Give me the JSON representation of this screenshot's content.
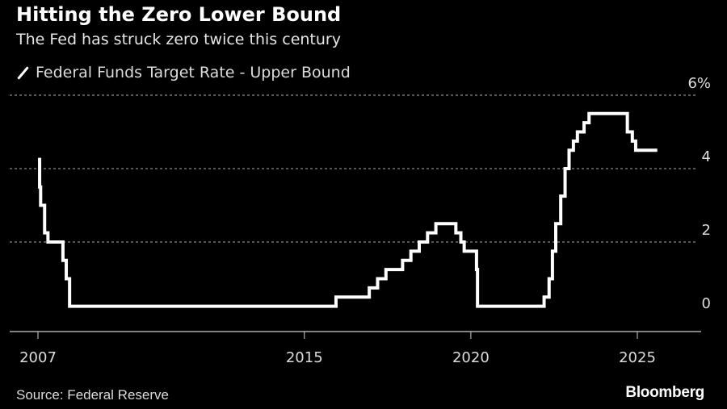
{
  "header": {
    "title": "Hitting the Zero Lower Bound",
    "subtitle": "The Fed has struck zero twice this century"
  },
  "legend": {
    "items": [
      {
        "label": "Federal Funds Target Rate - Upper Bound",
        "color": "#ffffff"
      }
    ]
  },
  "footer": {
    "source": "Source: Federal Reserve",
    "brand": "Bloomberg"
  },
  "chart_data": {
    "type": "line",
    "step": true,
    "title": "Hitting the Zero Lower Bound",
    "subtitle": "The Fed has struck zero twice this century",
    "xlabel": "",
    "ylabel": "",
    "x_ticks": [
      2007,
      2015,
      2020,
      2025
    ],
    "x_tick_labels": [
      "2007",
      "2015",
      "2020",
      "2025"
    ],
    "y_ticks": [
      0,
      2,
      4,
      6
    ],
    "y_tick_labels": [
      "0",
      "2",
      "4",
      "6%"
    ],
    "xlim": [
      2006.3,
      2026.2
    ],
    "ylim": [
      -0.2,
      6
    ],
    "grid": true,
    "legend_position": "top-left",
    "y_axis_side": "right",
    "series": [
      {
        "name": "Federal Funds Target Rate - Upper Bound",
        "color": "#ffffff",
        "points": [
          [
            2007.0,
            4.25
          ],
          [
            2007.05,
            3.5
          ],
          [
            2007.08,
            3.0
          ],
          [
            2007.2,
            2.25
          ],
          [
            2007.3,
            2.0
          ],
          [
            2007.75,
            1.5
          ],
          [
            2007.85,
            1.0
          ],
          [
            2007.95,
            0.25
          ],
          [
            2015.95,
            0.5
          ],
          [
            2016.95,
            0.75
          ],
          [
            2017.2,
            1.0
          ],
          [
            2017.45,
            1.25
          ],
          [
            2017.95,
            1.5
          ],
          [
            2018.2,
            1.75
          ],
          [
            2018.45,
            2.0
          ],
          [
            2018.7,
            2.25
          ],
          [
            2018.95,
            2.5
          ],
          [
            2019.55,
            2.25
          ],
          [
            2019.7,
            2.0
          ],
          [
            2019.8,
            1.75
          ],
          [
            2020.17,
            1.25
          ],
          [
            2020.2,
            0.25
          ],
          [
            2022.2,
            0.5
          ],
          [
            2022.35,
            1.0
          ],
          [
            2022.45,
            1.75
          ],
          [
            2022.55,
            2.5
          ],
          [
            2022.7,
            3.25
          ],
          [
            2022.83,
            4.0
          ],
          [
            2022.95,
            4.5
          ],
          [
            2023.08,
            4.75
          ],
          [
            2023.2,
            5.0
          ],
          [
            2023.4,
            5.25
          ],
          [
            2023.55,
            5.5
          ],
          [
            2024.7,
            5.0
          ],
          [
            2024.85,
            4.75
          ],
          [
            2024.95,
            4.5
          ],
          [
            2025.6,
            4.5
          ]
        ]
      }
    ]
  }
}
